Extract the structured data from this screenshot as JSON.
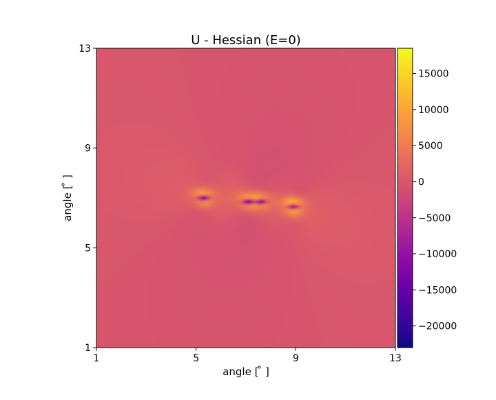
{
  "chart_data": {
    "type": "heatmap",
    "title": "U - Hessian (E=0)",
    "xlabel": "angle [$^\\circ$]",
    "ylabel": "angle [$^\\circ$]",
    "xlabel_display": "angle [ ̊ ]",
    "ylabel_display": "angle [ ̊ ]",
    "xlim": [
      1,
      13
    ],
    "ylim": [
      1,
      13
    ],
    "xticks": [
      1,
      5,
      9,
      13
    ],
    "yticks": [
      1,
      5,
      9,
      13
    ],
    "colormap": "plasma",
    "colorbar": {
      "range": [
        -23000,
        18500
      ],
      "ticks": [
        15000,
        10000,
        5000,
        0,
        -5000,
        -10000,
        -15000,
        -20000
      ],
      "tick_labels": [
        "15000",
        "10000",
        "5000",
        "0",
        "−5000",
        "−10000",
        "−15000",
        "−20000"
      ]
    },
    "background_value": 0,
    "features": [
      {
        "x": 5.3,
        "y": 7.0,
        "min": -22000,
        "max": 12000
      },
      {
        "x": 7.1,
        "y": 6.85,
        "min": -22500,
        "max": 9000
      },
      {
        "x": 7.6,
        "y": 6.85,
        "min": -20000,
        "max": 8000
      },
      {
        "x": 8.9,
        "y": 6.65,
        "min": -21000,
        "max": 15000
      }
    ]
  },
  "colors": {
    "plasma_stops": [
      "#0d0887",
      "#41049d",
      "#6a00a8",
      "#8f0da4",
      "#b12a90",
      "#cc4778",
      "#e16462",
      "#f2844b",
      "#fca636",
      "#fcce25",
      "#f0f921"
    ]
  }
}
